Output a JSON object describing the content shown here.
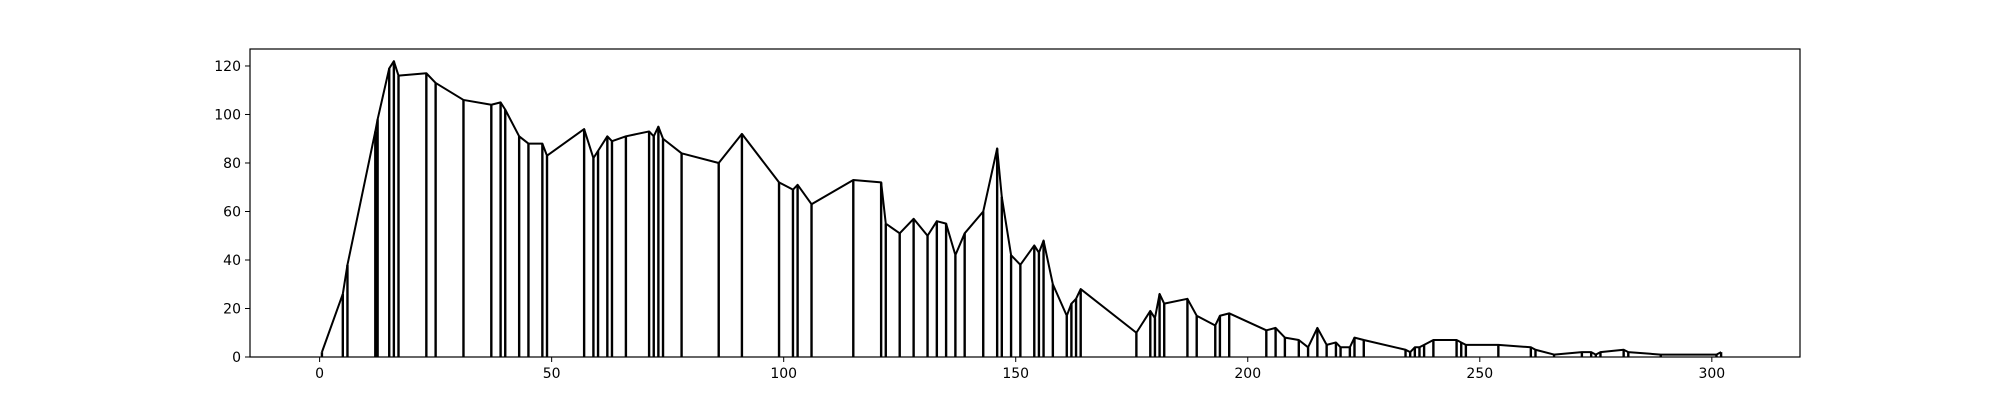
{
  "chart_data": {
    "type": "area",
    "title": "",
    "xlabel": "",
    "ylabel": "",
    "xlim": [
      -15,
      319
    ],
    "ylim": [
      0,
      127
    ],
    "x_ticks": [
      0,
      50,
      100,
      150,
      200,
      250,
      300
    ],
    "y_ticks": [
      0,
      20,
      40,
      60,
      80,
      100,
      120
    ],
    "x_tick_labels": [
      "0",
      "50",
      "100",
      "150",
      "200",
      "250",
      "300"
    ],
    "y_tick_labels": [
      "0",
      "20",
      "40",
      "60",
      "80",
      "100",
      "120"
    ],
    "grid": false,
    "legend": "none",
    "line_color": "#000000",
    "fill_color": "#ffffff",
    "series": [
      {
        "x": [
          0.5,
          5,
          6,
          12,
          12.5,
          15,
          16,
          17,
          23,
          25,
          31,
          37,
          39,
          40,
          43,
          45,
          48,
          49,
          57,
          59,
          60,
          62,
          63,
          66,
          71,
          72,
          73,
          74,
          78,
          86,
          91,
          99,
          102,
          103,
          106,
          115,
          121,
          122,
          125,
          128,
          131,
          133,
          135,
          137,
          139,
          143,
          146,
          147,
          149,
          151,
          154,
          155,
          156,
          158,
          161,
          162,
          163,
          164,
          176,
          179,
          180,
          181,
          182,
          187,
          189,
          193,
          194,
          196,
          204,
          206,
          208,
          211,
          213,
          215,
          217,
          219,
          220,
          222,
          223,
          225,
          234,
          235,
          236,
          237,
          238,
          240,
          245,
          246,
          247,
          254,
          261,
          262,
          266,
          272,
          274,
          275,
          276,
          281,
          282,
          289,
          301,
          302
        ],
        "y": [
          2,
          26,
          38,
          93,
          98,
          119,
          122,
          116,
          117,
          113,
          106,
          104,
          105,
          102,
          91,
          88,
          88,
          83,
          94,
          82,
          85,
          91,
          89,
          91,
          93,
          91,
          95,
          90,
          84,
          80,
          92,
          72,
          69,
          71,
          63,
          73,
          72,
          55,
          51,
          57,
          50,
          56,
          55,
          42,
          51,
          60,
          86,
          66,
          42,
          38,
          46,
          43,
          48,
          30,
          17,
          22,
          24,
          28,
          10,
          19,
          16,
          26,
          22,
          24,
          17,
          13,
          17,
          18,
          11,
          12,
          8,
          7,
          4,
          12,
          5,
          6,
          4,
          4,
          8,
          7,
          3,
          2,
          4,
          4,
          5,
          7,
          7,
          6,
          5,
          5,
          4,
          3,
          1,
          2,
          2,
          1,
          2,
          3,
          2,
          1,
          1,
          2
        ]
      }
    ]
  }
}
